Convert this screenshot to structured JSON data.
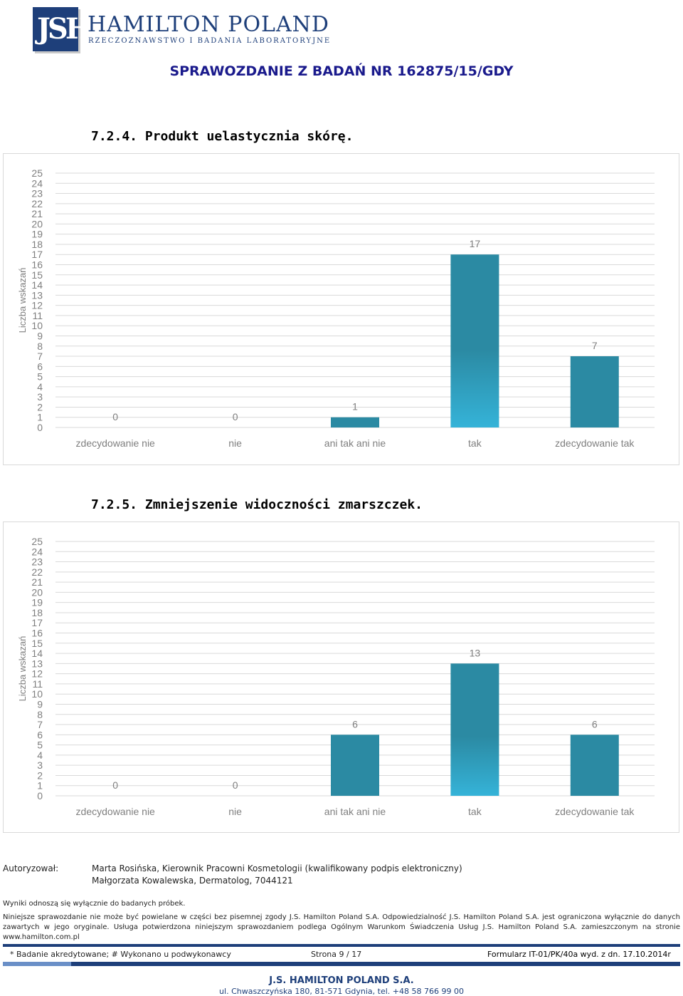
{
  "header": {
    "logo_monogram": "JSH",
    "company_name": "HAMILTON POLAND",
    "company_tagline": "RZECZOZNAWSTWO I BADANIA LABORATORYJNE",
    "report_title": "SPRAWOZDANIE Z BADAŃ NR 162875/15/GDY"
  },
  "sections": [
    {
      "title": "7.2.4. Produkt uelastycznia skórę."
    },
    {
      "title": "7.2.5. Zmniejszenie widoczności zmarszczek."
    }
  ],
  "colors": {
    "bar_dark": "#2b8aa3",
    "bar_light": "#35b3d8",
    "grid": "#d9d9d9",
    "axis_text": "#7f7f7f",
    "brand": "#1e3f7a"
  },
  "chart_data": [
    {
      "type": "bar",
      "categories": [
        "zdecydowanie nie",
        "nie",
        "ani tak ani nie",
        "tak",
        "zdecydowanie tak"
      ],
      "values": [
        0,
        0,
        1,
        17,
        7
      ],
      "highlight_index": 3,
      "ylabel": "Liczba wskazań",
      "ylim": [
        0,
        25
      ],
      "yticks": [
        0,
        1,
        2,
        3,
        4,
        5,
        6,
        7,
        8,
        9,
        10,
        11,
        12,
        13,
        14,
        15,
        16,
        17,
        18,
        19,
        20,
        21,
        22,
        23,
        24,
        25
      ],
      "grid": true
    },
    {
      "type": "bar",
      "categories": [
        "zdecydowanie nie",
        "nie",
        "ani tak ani nie",
        "tak",
        "zdecydowanie tak"
      ],
      "values": [
        0,
        0,
        6,
        13,
        6
      ],
      "highlight_index": 3,
      "ylabel": "Liczba wskazań",
      "ylim": [
        0,
        25
      ],
      "yticks": [
        0,
        1,
        2,
        3,
        4,
        5,
        6,
        7,
        8,
        9,
        10,
        11,
        12,
        13,
        14,
        15,
        16,
        17,
        18,
        19,
        20,
        21,
        22,
        23,
        24,
        25
      ],
      "grid": true
    }
  ],
  "footer": {
    "authorized_label": "Autoryzował:",
    "authorized_line1": "Marta Rosińska, Kierownik Pracowni Kosmetologii (kwalifikowany podpis elektroniczny)",
    "authorized_line2": "Małgorzata Kowalewska, Dermatolog, 7044121",
    "results_note": "Wyniki odnoszą się wyłącznie do badanych próbek.",
    "copy_note": "Niniejsze sprawozdanie nie może być powielane w części bez pisemnej zgody J.S. Hamilton Poland S.A. Odpowiedzialność J.S. Hamilton Poland S.A. jest ograniczona wyłącznie do danych zawartych w jego oryginale. Usługa potwierdzona niniejszym sprawozdaniem podlega Ogólnym Warunkom Świadczenia Usług J.S. Hamilton Poland S.A. zamieszczonym na stronie www.hamilton.com.pl",
    "accreditation_note": "* Badanie akredytowane; # Wykonano u podwykonawcy",
    "page_info": "Strona 9 / 17",
    "form_info": "Formularz IT-01/PK/40a wyd. z dn. 17.10.2014r",
    "company": "J.S. HAMILTON POLAND S.A.",
    "address": "ul. Chwaszczyńska 180, 81-571 Gdynia, tel. +48 58 766 99 00"
  }
}
